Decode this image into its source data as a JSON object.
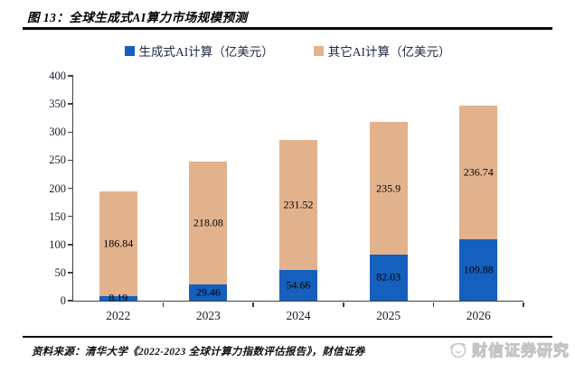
{
  "figure": {
    "title": "图 13：全球生成式AI算力市场规模预测",
    "source_note": "资料来源：清华大学《2022-2023 全球计算力指数评估报告》，财信证券",
    "watermark_text": "财信证券研究"
  },
  "chart_data": {
    "type": "bar",
    "stacked": true,
    "title": "全球生成式AI算力市场规模预测",
    "categories": [
      "2022",
      "2023",
      "2024",
      "2025",
      "2026"
    ],
    "series": [
      {
        "name": "生成式AI计算（亿美元）",
        "key": "genai",
        "color": "#1560BD",
        "values": [
          8.19,
          29.46,
          54.66,
          82.03,
          109.88
        ],
        "labels": [
          "8.19",
          "29.46",
          "54.66",
          "82.03",
          "109.88"
        ]
      },
      {
        "name": "其它AI计算（亿美元）",
        "key": "other-ai",
        "color": "#E2B28D",
        "values": [
          186.84,
          218.08,
          231.52,
          235.9,
          236.74
        ],
        "labels": [
          "186.84",
          "218.08",
          "231.52",
          "235.9",
          "236.74"
        ]
      }
    ],
    "ylim": [
      0,
      400
    ],
    "yticks": [
      0,
      50,
      100,
      150,
      200,
      250,
      300,
      350,
      400
    ],
    "legend_position": "top-center",
    "grid": false
  },
  "colors": {
    "axis": "#404040",
    "bar_label": "#000000",
    "legend_text": "#1f2a44",
    "watermark": "#c9c9c9"
  }
}
